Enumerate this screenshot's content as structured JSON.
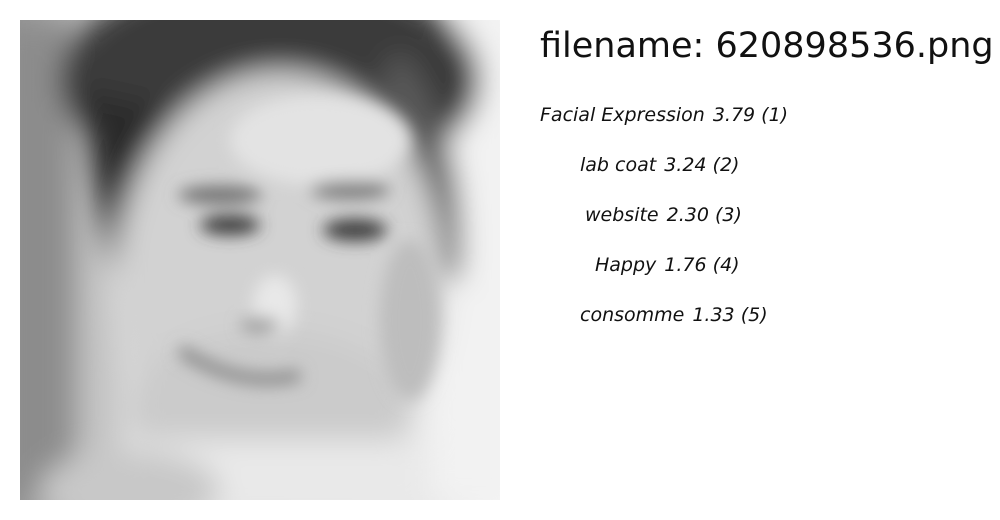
{
  "header": {
    "filename_label": "filename: 620898536.png"
  },
  "predictions": [
    {
      "label": "Facial Expression",
      "score": "3.79",
      "rank": "(1)"
    },
    {
      "label": "lab coat",
      "score": "3.24",
      "rank": "(2)"
    },
    {
      "label": "website",
      "score": "2.30",
      "rank": "(3)"
    },
    {
      "label": "Happy",
      "score": "1.76",
      "rank": "(4)"
    },
    {
      "label": "consomme",
      "score": "1.33",
      "rank": "(5)"
    }
  ]
}
